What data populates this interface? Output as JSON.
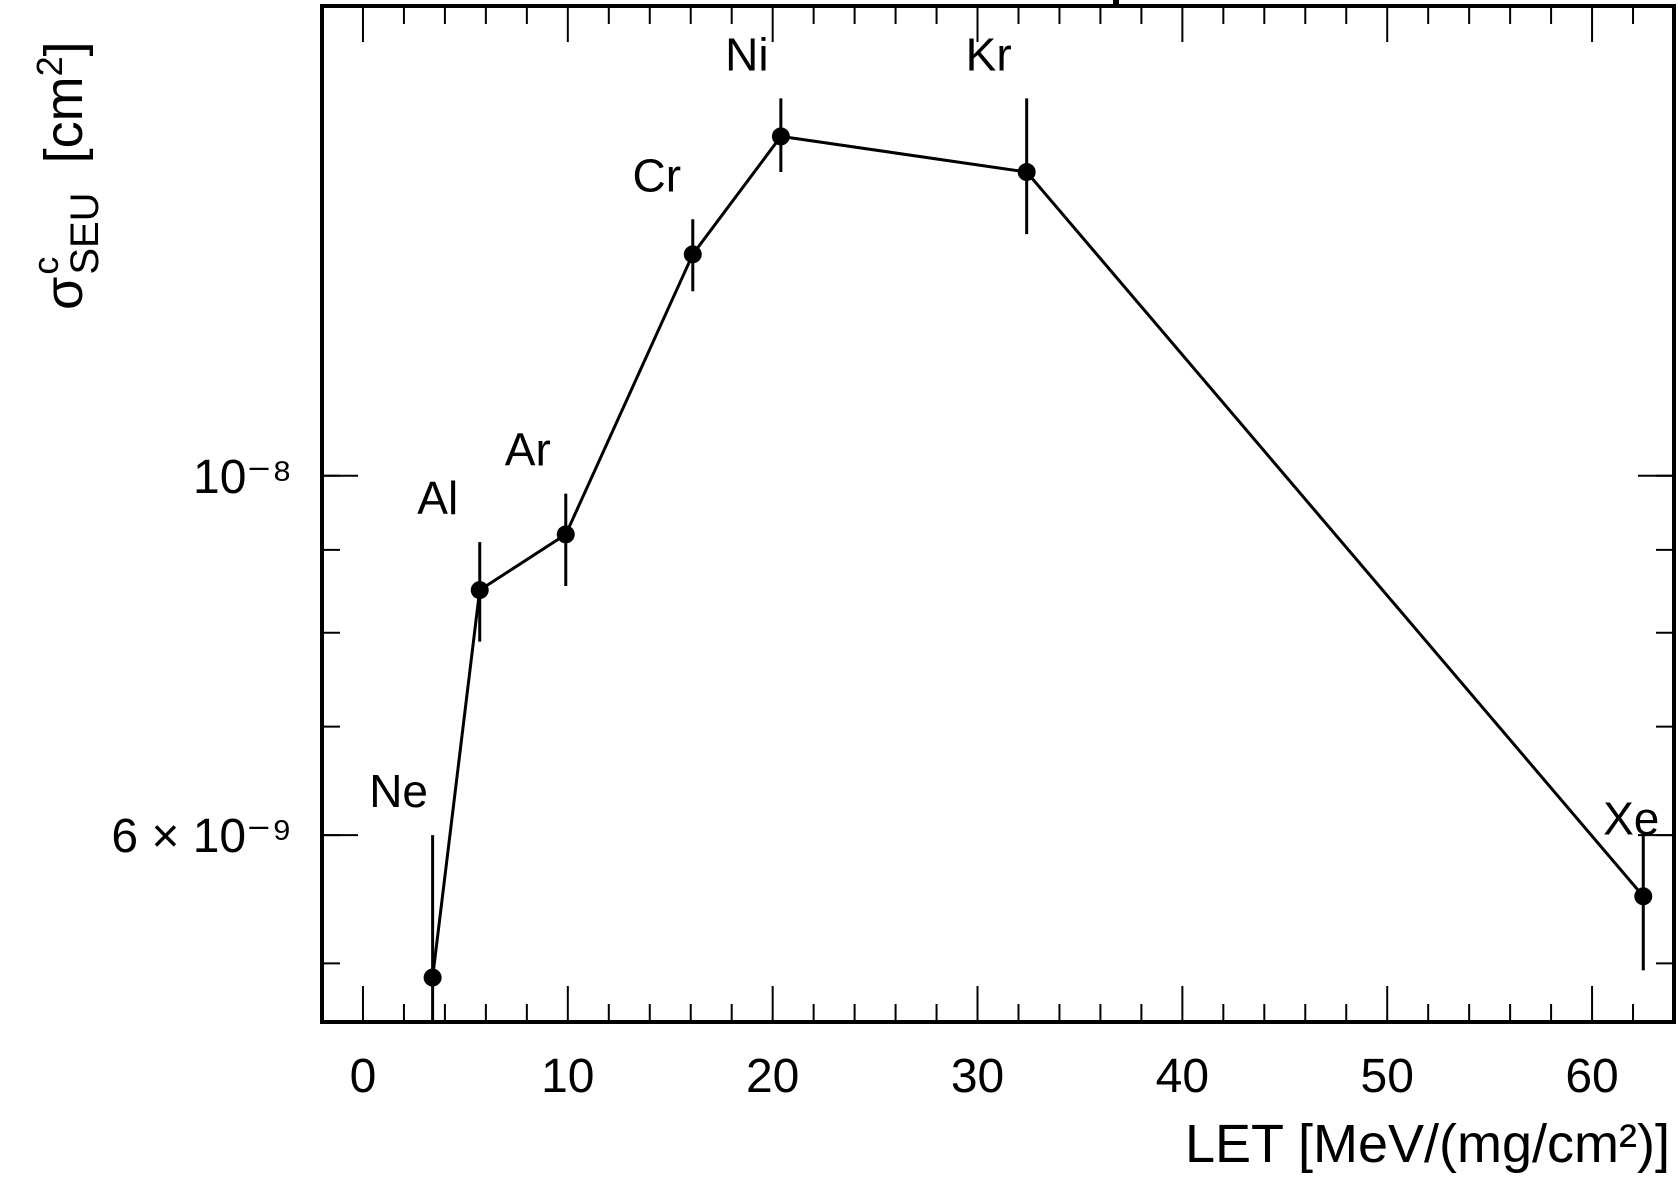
{
  "chart_data": {
    "type": "line",
    "xlabel": "LET [MeV/(mg/cm²)]",
    "ylabel": "σ^c_SEU [cm²]",
    "y_scale": "log",
    "xlim": [
      -2,
      64
    ],
    "ylim": [
      4.6e-09,
      1.95e-08
    ],
    "x_ticks": [
      "0",
      "10",
      "20",
      "30",
      "40",
      "50",
      "60"
    ],
    "y_ticks": [
      {
        "value": 6e-09,
        "label": "6 × 10⁻⁹"
      },
      {
        "value": 1e-08,
        "label": "10⁻⁸"
      }
    ],
    "grid": false,
    "legend": "none",
    "series": [
      {
        "points": [
          {
            "ion": "Ne",
            "x": 3.4,
            "y": 4.9e-09,
            "err_lo": 4.4e-09,
            "err_hi": 6e-09
          },
          {
            "ion": "Al",
            "x": 5.7,
            "y": 8.5e-09,
            "err_lo": 7.9e-09,
            "err_hi": 9.1e-09
          },
          {
            "ion": "Ar",
            "x": 9.9,
            "y": 9.2e-09,
            "err_lo": 8.55e-09,
            "err_hi": 9.75e-09
          },
          {
            "ion": "Cr",
            "x": 16.1,
            "y": 1.37e-08,
            "err_lo": 1.3e-08,
            "err_hi": 1.44e-08
          },
          {
            "ion": "Ni",
            "x": 20.4,
            "y": 1.62e-08,
            "err_lo": 1.54e-08,
            "err_hi": 1.71e-08
          },
          {
            "ion": "Kr",
            "x": 32.4,
            "y": 1.54e-08,
            "err_lo": 1.41e-08,
            "err_hi": 1.71e-08
          },
          {
            "ion": "Xe",
            "x": 62.5,
            "y": 5.5e-09,
            "err_lo": 4.95e-09,
            "err_hi": 6e-09
          }
        ]
      }
    ]
  }
}
